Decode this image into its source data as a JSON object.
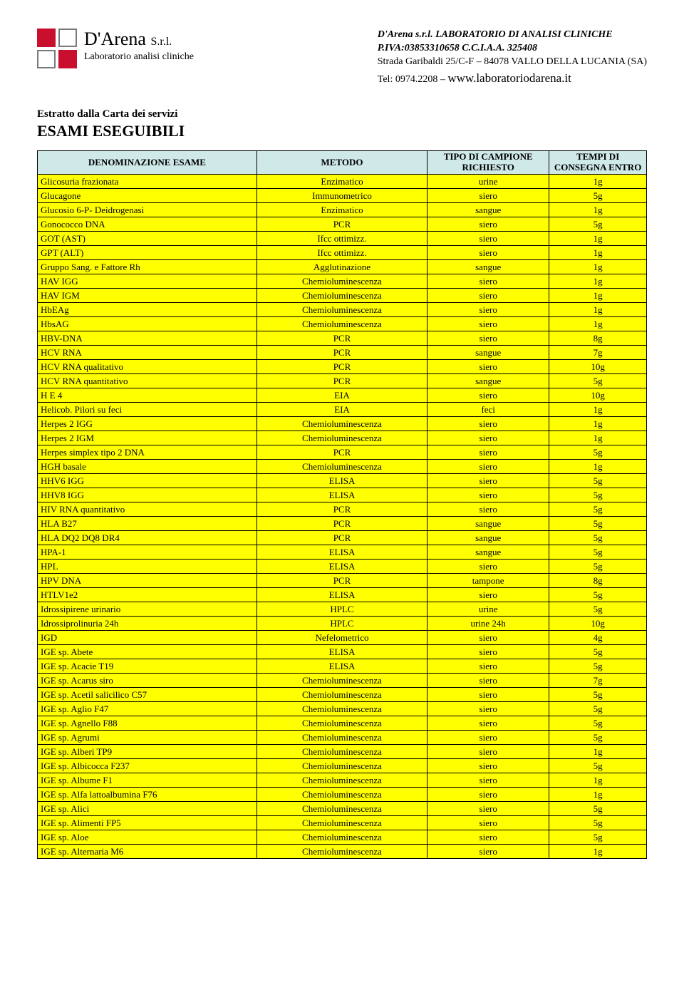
{
  "company": {
    "logo_name": "D'Arena",
    "logo_suffix": "S.r.l.",
    "logo_subtitle": "Laboratorio analisi cliniche",
    "line1": "D'Arena s.r.l. LABORATORIO DI ANALISI CLINICHE",
    "line2": "P.IVA:03853310658  C.C.I.A.A. 325408",
    "line3": "Strada Garibaldi 25/C-F – 84078 VALLO DELLA LUCANIA (SA)",
    "tel_label": "Tel: 0974.2208 – ",
    "website": "www.laboratoriodarena.it"
  },
  "intro": {
    "label": "Estratto dalla Carta dei servizi",
    "title": "ESAMI ESEGUIBILI"
  },
  "table": {
    "headers": {
      "c1": "DENOMINAZIONE ESAME",
      "c2": "METODO",
      "c3": "TIPO DI CAMPIONE RICHIESTO",
      "c4": "TEMPI DI CONSEGNA ENTRO"
    },
    "rows": [
      {
        "name": "Glicosuria frazionata",
        "method": "Enzimatico",
        "sample": "urine",
        "time": "1g"
      },
      {
        "name": "Glucagone",
        "method": "Immunometrico",
        "sample": "siero",
        "time": "5g"
      },
      {
        "name": "Glucosio 6-P- Deidrogenasi",
        "method": "Enzimatico",
        "sample": "sangue",
        "time": "1g"
      },
      {
        "name": "Gonococco DNA",
        "method": "PCR",
        "sample": "siero",
        "time": "5g"
      },
      {
        "name": "GOT (AST)",
        "method": "Ifcc ottimizz.",
        "sample": "siero",
        "time": "1g"
      },
      {
        "name": "GPT (ALT)",
        "method": "Ifcc ottimizz.",
        "sample": "siero",
        "time": "1g"
      },
      {
        "name": "Gruppo Sang. e Fattore Rh",
        "method": "Agglutinazione",
        "sample": "sangue",
        "time": "1g"
      },
      {
        "name": "HAV  IGG",
        "method": "Chemioluminescenza",
        "sample": "siero",
        "time": "1g"
      },
      {
        "name": "HAV  IGM",
        "method": "Chemioluminescenza",
        "sample": "siero",
        "time": "1g"
      },
      {
        "name": "HbEAg",
        "method": "Chemioluminescenza",
        "sample": "siero",
        "time": "1g"
      },
      {
        "name": "HbsAG",
        "method": "Chemioluminescenza",
        "sample": "siero",
        "time": "1g"
      },
      {
        "name": "HBV-DNA",
        "method": "PCR",
        "sample": "siero",
        "time": "8g"
      },
      {
        "name": "HCV RNA",
        "method": "PCR",
        "sample": "sangue",
        "time": "7g"
      },
      {
        "name": "HCV RNA qualitativo",
        "method": "PCR",
        "sample": "siero",
        "time": "10g"
      },
      {
        "name": "HCV RNA quantitativo",
        "method": "PCR",
        "sample": "sangue",
        "time": "5g"
      },
      {
        "name": "H E 4",
        "method": "EIA",
        "sample": "siero",
        "time": "10g"
      },
      {
        "name": "Helicob. Pilori su feci",
        "method": "EIA",
        "sample": "feci",
        "time": "1g"
      },
      {
        "name": "Herpes 2  IGG",
        "method": "Chemioluminescenza",
        "sample": "siero",
        "time": "1g"
      },
      {
        "name": "Herpes 2  IGM",
        "method": "Chemioluminescenza",
        "sample": "siero",
        "time": "1g"
      },
      {
        "name": "Herpes simplex tipo 2 DNA",
        "method": "PCR",
        "sample": "siero",
        "time": "5g"
      },
      {
        "name": "HGH basale",
        "method": "Chemioluminescenza",
        "sample": "siero",
        "time": "1g"
      },
      {
        "name": "HHV6 IGG",
        "method": "ELISA",
        "sample": "siero",
        "time": "5g"
      },
      {
        "name": "HHV8 IGG",
        "method": "ELISA",
        "sample": "siero",
        "time": "5g"
      },
      {
        "name": "HIV RNA quantitativo",
        "method": "PCR",
        "sample": "siero",
        "time": "5g"
      },
      {
        "name": "HLA  B27",
        "method": "PCR",
        "sample": "sangue",
        "time": "5g"
      },
      {
        "name": "HLA DQ2 DQ8 DR4",
        "method": "PCR",
        "sample": "sangue",
        "time": "5g"
      },
      {
        "name": "HPA-1",
        "method": "ELISA",
        "sample": "sangue",
        "time": "5g"
      },
      {
        "name": "HPL",
        "method": "ELISA",
        "sample": "siero",
        "time": "5g"
      },
      {
        "name": "HPV DNA",
        "method": "PCR",
        "sample": "tampone",
        "time": "8g"
      },
      {
        "name": "HTLV1e2",
        "method": "ELISA",
        "sample": "siero",
        "time": "5g"
      },
      {
        "name": "Idrossipirene urinario",
        "method": "HPLC",
        "sample": "urine",
        "time": "5g"
      },
      {
        "name": "Idrossiprolinuria 24h",
        "method": "HPLC",
        "sample": "urine 24h",
        "time": "10g"
      },
      {
        "name": "IGD",
        "method": "Nefelometrico",
        "sample": "siero",
        "time": "4g"
      },
      {
        "name": "IGE sp. Abete",
        "method": "ELISA",
        "sample": "siero",
        "time": "5g"
      },
      {
        "name": "IGE sp. Acacie T19",
        "method": "ELISA",
        "sample": "siero",
        "time": "5g"
      },
      {
        "name": "IGE sp. Acarus siro",
        "method": "Chemioluminescenza",
        "sample": "siero",
        "time": "7g"
      },
      {
        "name": "IGE sp. Acetil salicilico C57",
        "method": "Chemioluminescenza",
        "sample": "siero",
        "time": "5g"
      },
      {
        "name": "IGE sp. Aglio F47",
        "method": "Chemioluminescenza",
        "sample": "siero",
        "time": "5g"
      },
      {
        "name": "IGE sp. Agnello F88",
        "method": "Chemioluminescenza",
        "sample": "siero",
        "time": "5g"
      },
      {
        "name": "IGE sp. Agrumi",
        "method": "Chemioluminescenza",
        "sample": "siero",
        "time": "5g"
      },
      {
        "name": "IGE sp. Alberi TP9",
        "method": "Chemioluminescenza",
        "sample": "siero",
        "time": "1g"
      },
      {
        "name": "IGE sp. Albicocca F237",
        "method": "Chemioluminescenza",
        "sample": "siero",
        "time": "5g"
      },
      {
        "name": "IGE sp. Albume F1",
        "method": "Chemioluminescenza",
        "sample": "siero",
        "time": "1g"
      },
      {
        "name": "IGE sp. Alfa lattoalbumina F76",
        "method": "Chemioluminescenza",
        "sample": "siero",
        "time": "1g"
      },
      {
        "name": "IGE sp. Alici",
        "method": "Chemioluminescenza",
        "sample": "siero",
        "time": "5g"
      },
      {
        "name": "IGE sp. Alimenti FP5",
        "method": "Chemioluminescenza",
        "sample": "siero",
        "time": "5g"
      },
      {
        "name": "IGE sp. Aloe",
        "method": "Chemioluminescenza",
        "sample": "siero",
        "time": "5g"
      },
      {
        "name": "IGE sp. Alternaria M6",
        "method": "Chemioluminescenza",
        "sample": "siero",
        "time": "1g"
      }
    ]
  },
  "colors": {
    "header_bg": "#cfe8e8",
    "row_bg": "#ffff00",
    "border": "#000000",
    "logo_red": "#c8102e"
  }
}
